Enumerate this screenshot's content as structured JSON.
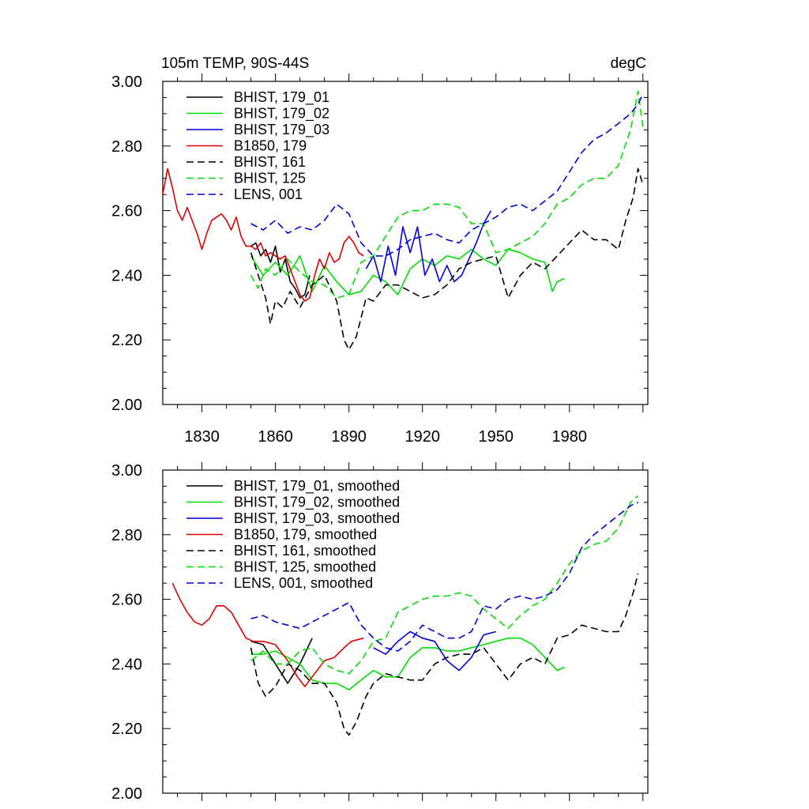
{
  "figure": {
    "title_left": "105m TEMP, 90S-44S",
    "title_right": "degC"
  },
  "chart_data": [
    {
      "type": "line",
      "panel": "top",
      "xlim": [
        1814,
        2012
      ],
      "ylim": [
        2.0,
        3.0
      ],
      "xticks": [
        1830,
        1860,
        1890,
        1920,
        1950,
        1980
      ],
      "xtick_labels": [
        "1830",
        "1860",
        "1890",
        "1920",
        "1950",
        "1980"
      ],
      "yticks": [
        2.0,
        2.2,
        2.4,
        2.6,
        2.8,
        3.0
      ],
      "ytick_labels": [
        "2.00",
        "2.20",
        "2.40",
        "2.60",
        "2.80",
        "3.00"
      ],
      "legend_position": "top-left",
      "series": [
        {
          "name": "BHIST, 179_01",
          "color": "#000000",
          "dash": "solid",
          "x": [
            1850,
            1852,
            1854,
            1856,
            1858,
            1860,
            1862,
            1864,
            1866,
            1868,
            1870,
            1872,
            1874
          ],
          "y": [
            2.49,
            2.5,
            2.46,
            2.48,
            2.44,
            2.49,
            2.41,
            2.45,
            2.38,
            2.36,
            2.33,
            2.34,
            2.4
          ]
        },
        {
          "name": "BHIST, 179_02",
          "color": "#00dd00",
          "dash": "solid",
          "x": [
            1850,
            1855,
            1860,
            1865,
            1870,
            1875,
            1880,
            1885,
            1890,
            1895,
            1900,
            1905,
            1910,
            1915,
            1920,
            1925,
            1930,
            1935,
            1940,
            1945,
            1950,
            1955,
            1960,
            1965,
            1970,
            1973,
            1975,
            1978
          ],
          "y": [
            2.46,
            2.4,
            2.44,
            2.4,
            2.46,
            2.35,
            2.43,
            2.38,
            2.34,
            2.35,
            2.4,
            2.38,
            2.34,
            2.42,
            2.45,
            2.43,
            2.46,
            2.45,
            2.48,
            2.45,
            2.43,
            2.48,
            2.47,
            2.45,
            2.44,
            2.35,
            2.38,
            2.39
          ]
        },
        {
          "name": "BHIST, 179_03",
          "color": "#0000dd",
          "dash": "solid",
          "x": [
            1897,
            1900,
            1903,
            1906,
            1909,
            1912,
            1915,
            1918,
            1921,
            1924,
            1927,
            1930,
            1933,
            1936,
            1939,
            1942,
            1945,
            1948
          ],
          "y": [
            2.42,
            2.46,
            2.38,
            2.49,
            2.4,
            2.55,
            2.47,
            2.55,
            2.4,
            2.45,
            2.38,
            2.43,
            2.38,
            2.4,
            2.45,
            2.5,
            2.56,
            2.6
          ]
        },
        {
          "name": "B1850, 179",
          "color": "#dd0000",
          "dash": "solid",
          "x": [
            1814,
            1816,
            1818,
            1820,
            1822,
            1824,
            1826,
            1828,
            1830,
            1832,
            1834,
            1836,
            1838,
            1840,
            1842,
            1844,
            1846,
            1848,
            1850,
            1852,
            1854,
            1856,
            1858,
            1860,
            1862,
            1864,
            1866,
            1868,
            1870,
            1872,
            1874,
            1876,
            1878,
            1880,
            1882,
            1884,
            1886,
            1888,
            1890,
            1892,
            1894,
            1896
          ],
          "y": [
            2.65,
            2.73,
            2.67,
            2.6,
            2.57,
            2.61,
            2.57,
            2.53,
            2.48,
            2.53,
            2.57,
            2.58,
            2.59,
            2.57,
            2.54,
            2.58,
            2.52,
            2.49,
            2.49,
            2.48,
            2.5,
            2.46,
            2.47,
            2.46,
            2.45,
            2.46,
            2.42,
            2.38,
            2.34,
            2.32,
            2.33,
            2.4,
            2.45,
            2.42,
            2.47,
            2.44,
            2.45,
            2.5,
            2.52,
            2.5,
            2.47,
            2.46
          ]
        },
        {
          "name": "BHIST, 161",
          "color": "#000000",
          "dash": "dashed",
          "x": [
            1850,
            1853,
            1856,
            1858,
            1860,
            1863,
            1866,
            1870,
            1875,
            1880,
            1885,
            1888,
            1890,
            1893,
            1897,
            1900,
            1905,
            1910,
            1915,
            1920,
            1925,
            1930,
            1935,
            1940,
            1945,
            1950,
            1955,
            1960,
            1965,
            1970,
            1975,
            1980,
            1985,
            1990,
            1995,
            2000,
            2003,
            2006,
            2008,
            2010
          ],
          "y": [
            2.47,
            2.4,
            2.33,
            2.25,
            2.32,
            2.3,
            2.35,
            2.3,
            2.37,
            2.4,
            2.32,
            2.2,
            2.17,
            2.21,
            2.33,
            2.32,
            2.37,
            2.37,
            2.35,
            2.33,
            2.34,
            2.37,
            2.42,
            2.44,
            2.45,
            2.46,
            2.33,
            2.4,
            2.44,
            2.42,
            2.46,
            2.5,
            2.54,
            2.51,
            2.51,
            2.48,
            2.57,
            2.64,
            2.73,
            2.68
          ]
        },
        {
          "name": "BHIST, 125",
          "color": "#00dd00",
          "dash": "dashed",
          "x": [
            1850,
            1853,
            1856,
            1860,
            1865,
            1870,
            1875,
            1880,
            1885,
            1890,
            1895,
            1900,
            1905,
            1910,
            1915,
            1920,
            1925,
            1930,
            1935,
            1940,
            1945,
            1950,
            1955,
            1960,
            1965,
            1970,
            1975,
            1980,
            1985,
            1990,
            1995,
            2000,
            2005,
            2008,
            2010
          ],
          "y": [
            2.4,
            2.36,
            2.42,
            2.4,
            2.45,
            2.41,
            2.38,
            2.37,
            2.33,
            2.34,
            2.44,
            2.46,
            2.52,
            2.58,
            2.6,
            2.6,
            2.62,
            2.62,
            2.61,
            2.56,
            2.56,
            2.47,
            2.48,
            2.5,
            2.52,
            2.56,
            2.62,
            2.64,
            2.68,
            2.7,
            2.7,
            2.74,
            2.85,
            2.97,
            2.86
          ]
        },
        {
          "name": "LENS, 001",
          "color": "#0000dd",
          "dash": "dashed",
          "x": [
            1850,
            1855,
            1860,
            1865,
            1870,
            1875,
            1880,
            1885,
            1890,
            1895,
            1900,
            1905,
            1910,
            1915,
            1920,
            1925,
            1930,
            1935,
            1940,
            1945,
            1950,
            1955,
            1960,
            1965,
            1970,
            1975,
            1980,
            1985,
            1990,
            1995,
            2000,
            2005,
            2008,
            2010
          ],
          "y": [
            2.56,
            2.54,
            2.57,
            2.53,
            2.55,
            2.54,
            2.57,
            2.62,
            2.59,
            2.5,
            2.46,
            2.46,
            2.48,
            2.51,
            2.52,
            2.53,
            2.51,
            2.5,
            2.54,
            2.56,
            2.58,
            2.61,
            2.62,
            2.6,
            2.63,
            2.66,
            2.72,
            2.78,
            2.82,
            2.84,
            2.87,
            2.9,
            2.93,
            2.96
          ]
        }
      ]
    },
    {
      "type": "line",
      "panel": "bottom",
      "xlim": [
        1814,
        2012
      ],
      "ylim": [
        2.0,
        3.0
      ],
      "yticks": [
        2.0,
        2.2,
        2.4,
        2.6,
        2.8,
        3.0
      ],
      "ytick_labels": [
        "2.00",
        "2.20",
        "2.40",
        "2.60",
        "2.80",
        "3.00"
      ],
      "legend_position": "top-left",
      "series": [
        {
          "name": "BHIST, 179_01, smoothed",
          "color": "#000000",
          "dash": "solid",
          "x": [
            1850,
            1855,
            1860,
            1865,
            1870,
            1875
          ],
          "y": [
            2.47,
            2.46,
            2.4,
            2.34,
            2.4,
            2.48
          ]
        },
        {
          "name": "BHIST, 179_02, smoothed",
          "color": "#00dd00",
          "dash": "solid",
          "x": [
            1850,
            1855,
            1860,
            1865,
            1870,
            1875,
            1880,
            1885,
            1890,
            1895,
            1900,
            1905,
            1910,
            1915,
            1920,
            1925,
            1930,
            1935,
            1940,
            1945,
            1950,
            1955,
            1960,
            1965,
            1970,
            1975,
            1978
          ],
          "y": [
            2.43,
            2.43,
            2.44,
            2.42,
            2.4,
            2.35,
            2.34,
            2.34,
            2.32,
            2.35,
            2.38,
            2.36,
            2.36,
            2.42,
            2.45,
            2.45,
            2.44,
            2.44,
            2.45,
            2.46,
            2.47,
            2.48,
            2.48,
            2.46,
            2.42,
            2.38,
            2.39
          ]
        },
        {
          "name": "BHIST, 179_03, smoothed",
          "color": "#0000dd",
          "dash": "solid",
          "x": [
            1900,
            1905,
            1910,
            1915,
            1920,
            1925,
            1930,
            1935,
            1940,
            1945,
            1950
          ],
          "y": [
            2.45,
            2.43,
            2.47,
            2.5,
            2.48,
            2.47,
            2.41,
            2.38,
            2.42,
            2.49,
            2.5
          ]
        },
        {
          "name": "B1850, 179, smoothed",
          "color": "#dd0000",
          "dash": "solid",
          "x": [
            1818,
            1821,
            1824,
            1827,
            1830,
            1833,
            1836,
            1839,
            1842,
            1845,
            1848,
            1851,
            1855,
            1860,
            1865,
            1869,
            1872,
            1876,
            1880,
            1884,
            1888,
            1891,
            1896
          ],
          "y": [
            2.65,
            2.6,
            2.56,
            2.53,
            2.52,
            2.54,
            2.58,
            2.58,
            2.56,
            2.52,
            2.48,
            2.47,
            2.47,
            2.46,
            2.41,
            2.36,
            2.33,
            2.37,
            2.41,
            2.42,
            2.45,
            2.47,
            2.48
          ]
        },
        {
          "name": "BHIST, 161, smoothed",
          "color": "#000000",
          "dash": "dashed",
          "x": [
            1850,
            1853,
            1856,
            1860,
            1865,
            1870,
            1875,
            1880,
            1885,
            1888,
            1890,
            1893,
            1897,
            1900,
            1905,
            1910,
            1915,
            1920,
            1925,
            1930,
            1935,
            1940,
            1945,
            1950,
            1955,
            1960,
            1965,
            1970,
            1975,
            1980,
            1985,
            1990,
            1995,
            2000,
            2003,
            2006,
            2008
          ],
          "y": [
            2.45,
            2.34,
            2.3,
            2.33,
            2.4,
            2.38,
            2.34,
            2.34,
            2.28,
            2.2,
            2.18,
            2.22,
            2.3,
            2.34,
            2.37,
            2.36,
            2.35,
            2.35,
            2.4,
            2.42,
            2.43,
            2.43,
            2.45,
            2.4,
            2.35,
            2.4,
            2.42,
            2.4,
            2.48,
            2.49,
            2.52,
            2.51,
            2.5,
            2.5,
            2.55,
            2.62,
            2.68
          ]
        },
        {
          "name": "BHIST, 125, smoothed",
          "color": "#00dd00",
          "dash": "dashed",
          "x": [
            1850,
            1855,
            1860,
            1865,
            1870,
            1875,
            1880,
            1885,
            1890,
            1895,
            1900,
            1905,
            1910,
            1915,
            1920,
            1925,
            1930,
            1935,
            1940,
            1945,
            1950,
            1955,
            1960,
            1965,
            1970,
            1975,
            1980,
            1985,
            1990,
            1995,
            2000,
            2005,
            2008
          ],
          "y": [
            2.41,
            2.44,
            2.4,
            2.4,
            2.44,
            2.45,
            2.4,
            2.38,
            2.37,
            2.41,
            2.47,
            2.48,
            2.56,
            2.58,
            2.6,
            2.61,
            2.61,
            2.62,
            2.61,
            2.57,
            2.54,
            2.51,
            2.55,
            2.58,
            2.6,
            2.65,
            2.71,
            2.75,
            2.77,
            2.78,
            2.82,
            2.9,
            2.92
          ]
        },
        {
          "name": "LENS, 001, smoothed",
          "color": "#0000dd",
          "dash": "dashed",
          "x": [
            1850,
            1855,
            1860,
            1865,
            1870,
            1875,
            1880,
            1885,
            1890,
            1895,
            1900,
            1905,
            1910,
            1915,
            1920,
            1925,
            1930,
            1935,
            1940,
            1945,
            1950,
            1955,
            1960,
            1965,
            1970,
            1975,
            1980,
            1985,
            1990,
            1995,
            2000,
            2005,
            2008
          ],
          "y": [
            2.54,
            2.55,
            2.53,
            2.52,
            2.51,
            2.53,
            2.55,
            2.57,
            2.59,
            2.52,
            2.48,
            2.45,
            2.44,
            2.47,
            2.52,
            2.5,
            2.48,
            2.48,
            2.5,
            2.58,
            2.57,
            2.6,
            2.61,
            2.6,
            2.61,
            2.63,
            2.68,
            2.76,
            2.8,
            2.83,
            2.86,
            2.89,
            2.9
          ]
        }
      ]
    }
  ]
}
